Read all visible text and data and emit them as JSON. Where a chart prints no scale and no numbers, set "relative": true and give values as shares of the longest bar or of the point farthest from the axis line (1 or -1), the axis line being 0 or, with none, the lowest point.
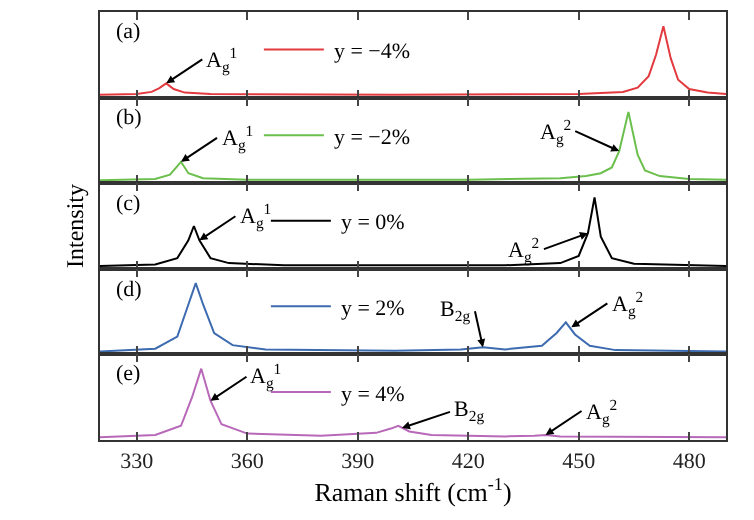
{
  "chart_data": [
    {
      "type": "line",
      "relative": true,
      "xlim": [
        320,
        490
      ],
      "xticks": [
        330,
        360,
        390,
        420,
        450,
        480
      ],
      "tick_labels": false,
      "legend": "top",
      "annotations": [
        "(a)",
        {
          "text": "A$_{g}$$^{1}$",
          "x": 338,
          "y": 0.2
        }
      ],
      "series": [
        {
          "name": "y = −4%",
          "color": "#e23a3f",
          "x": [
            320,
            330,
            334,
            336,
            338,
            340,
            343,
            350,
            400,
            450,
            462,
            466,
            469,
            471,
            473,
            475,
            477,
            480,
            485,
            490
          ],
          "values": [
            0.04,
            0.05,
            0.08,
            0.13,
            0.2,
            0.12,
            0.07,
            0.05,
            0.04,
            0.05,
            0.08,
            0.14,
            0.3,
            0.6,
            1,
            0.55,
            0.25,
            0.12,
            0.07,
            0.05
          ]
        }
      ]
    },
    {
      "type": "line",
      "relative": true,
      "xlim": [
        320,
        490
      ],
      "xticks": [
        330,
        360,
        390,
        420,
        450,
        480
      ],
      "tick_labels": false,
      "legend": "top",
      "annotations": [
        "(b)",
        {
          "text": "A$_{g}$$^{1}$",
          "x": 342,
          "y": 0.3
        },
        {
          "text": "A$_{g}$$^{2}$",
          "x": 461,
          "y": 0.45
        }
      ],
      "series": [
        {
          "name": "y = −2%",
          "color": "#6bbf4c",
          "x": [
            320,
            335,
            339,
            342,
            344,
            348,
            360,
            420,
            445,
            452,
            456,
            459,
            461,
            463.5,
            466,
            468,
            472,
            480,
            490
          ],
          "values": [
            0.04,
            0.06,
            0.12,
            0.3,
            0.14,
            0.07,
            0.05,
            0.05,
            0.07,
            0.1,
            0.14,
            0.22,
            0.45,
            1,
            0.4,
            0.18,
            0.1,
            0.06,
            0.05
          ]
        }
      ]
    },
    {
      "type": "line",
      "relative": true,
      "xlim": [
        320,
        490
      ],
      "xticks": [
        330,
        360,
        390,
        420,
        450,
        480
      ],
      "tick_labels": false,
      "legend": "top",
      "ylabel": "Intensity",
      "annotations": [
        "(c)",
        {
          "text": "A$_{g}$$^{1}$",
          "x": 347,
          "y": 0.4
        },
        {
          "text": "A$_{g}$$^{2}$",
          "x": 452.5,
          "y": 0.5
        }
      ],
      "series": [
        {
          "name": "y = 0%",
          "color": "#000000",
          "x": [
            320,
            335,
            341,
            344,
            345.5,
            347,
            350,
            355,
            370,
            430,
            445,
            450,
            452.5,
            454.3,
            456,
            459,
            465,
            490
          ],
          "values": [
            0.04,
            0.06,
            0.15,
            0.4,
            0.6,
            0.4,
            0.15,
            0.08,
            0.05,
            0.05,
            0.08,
            0.18,
            0.5,
            1,
            0.45,
            0.15,
            0.07,
            0.04
          ]
        }
      ]
    },
    {
      "type": "line",
      "relative": true,
      "xlim": [
        320,
        490
      ],
      "xticks": [
        330,
        360,
        390,
        420,
        450,
        480
      ],
      "tick_labels": false,
      "legend": "top",
      "annotations": [
        "(d)",
        {
          "text": "B$_{2g}$",
          "x": 424,
          "y": 0.1
        },
        {
          "text": "A$_{g}$$^{2}$",
          "x": 448,
          "y": 0.38
        }
      ],
      "series": [
        {
          "name": "y = 2%",
          "color": "#3d6bb0",
          "x": [
            320,
            335,
            341,
            344,
            346,
            348,
            351,
            356,
            365,
            400,
            418,
            424,
            430,
            440,
            444,
            446.5,
            449,
            453,
            460,
            490
          ],
          "values": [
            0.04,
            0.08,
            0.25,
            0.7,
            1,
            0.7,
            0.3,
            0.13,
            0.07,
            0.05,
            0.07,
            0.1,
            0.07,
            0.12,
            0.3,
            0.45,
            0.28,
            0.12,
            0.06,
            0.04
          ]
        }
      ]
    },
    {
      "type": "line",
      "relative": true,
      "xlim": [
        320,
        490
      ],
      "xticks": [
        330,
        360,
        390,
        420,
        450,
        480
      ],
      "tick_labels": "x",
      "legend": "top",
      "xlabel": "Raman shift (cm$^{-1}$)",
      "annotations": [
        "(e)",
        {
          "text": "A$_{g}$$^{1}$",
          "x": 350,
          "y": 0.55
        },
        {
          "text": "B$_{2g}$",
          "x": 402,
          "y": 0.17
        },
        {
          "text": "A$_{g}$$^{2}$",
          "x": 441,
          "y": 0.07
        }
      ],
      "series": [
        {
          "name": "y = 4%",
          "color": "#b868b8",
          "x": [
            320,
            335,
            342,
            345,
            347.5,
            350,
            353,
            360,
            380,
            395,
            399,
            401,
            404,
            410,
            430,
            438,
            441,
            445,
            490
          ],
          "values": [
            0.04,
            0.07,
            0.2,
            0.6,
            1,
            0.55,
            0.22,
            0.09,
            0.06,
            0.1,
            0.16,
            0.2,
            0.12,
            0.07,
            0.05,
            0.06,
            0.07,
            0.05,
            0.04
          ]
        }
      ]
    }
  ]
}
